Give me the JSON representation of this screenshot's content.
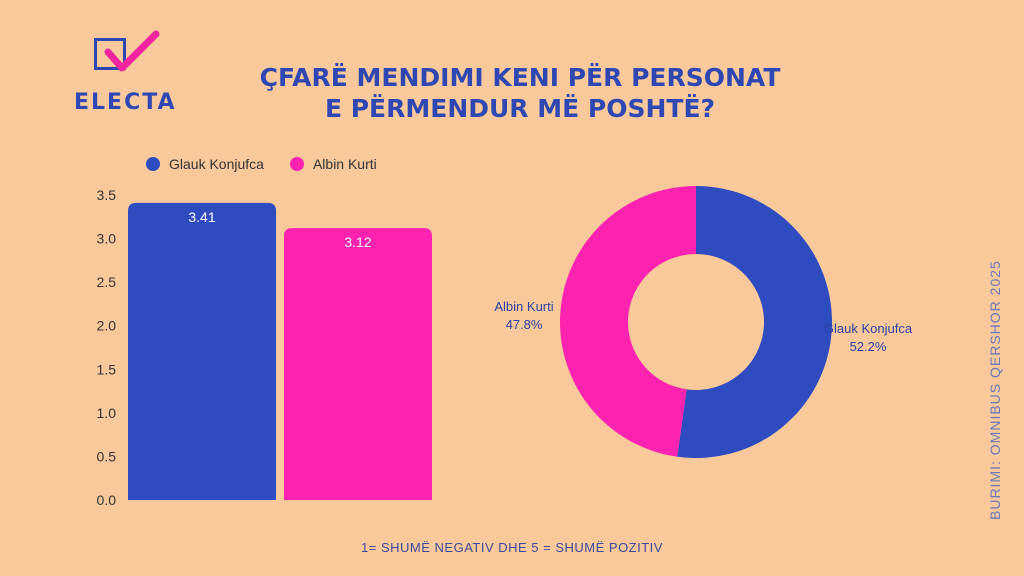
{
  "logo": {
    "text": "ELECTA"
  },
  "title": {
    "line1": "ÇFARË MENDIMI KENI PËR PERSONAT",
    "line2": "E PËRMENDUR MË POSHTË?"
  },
  "legend": [
    {
      "name": "Glauk Konjufca",
      "color": "#2e4bc0"
    },
    {
      "name": "Albin Kurti",
      "color": "#fd23b0"
    }
  ],
  "footnote": "1= SHUMË NEGATIV DHE 5 = SHUMË POZITIV",
  "source": "BURIMI: OMNIBUS QERSHOR 2025",
  "chart_data": [
    {
      "type": "bar",
      "categories": [
        "Glauk Konjufca",
        "Albin Kurti"
      ],
      "values": [
        3.41,
        3.12
      ],
      "data_labels": [
        "3.41",
        "3.12"
      ],
      "colors": [
        "#2e4bc0",
        "#fd23b0"
      ],
      "ylim": [
        0,
        3.5
      ],
      "yticks": [
        "0.0",
        "0.5",
        "1.0",
        "1.5",
        "2.0",
        "2.5",
        "3.0",
        "3.5"
      ],
      "grid": false
    },
    {
      "type": "pie",
      "donut": true,
      "slices": [
        {
          "name": "Glauk Konjufca",
          "value": 52.2,
          "label": "52.2%",
          "color": "#2e4bc0"
        },
        {
          "name": "Albin Kurti",
          "value": 47.8,
          "label": "47.8%",
          "color": "#fd23b0"
        }
      ]
    }
  ]
}
